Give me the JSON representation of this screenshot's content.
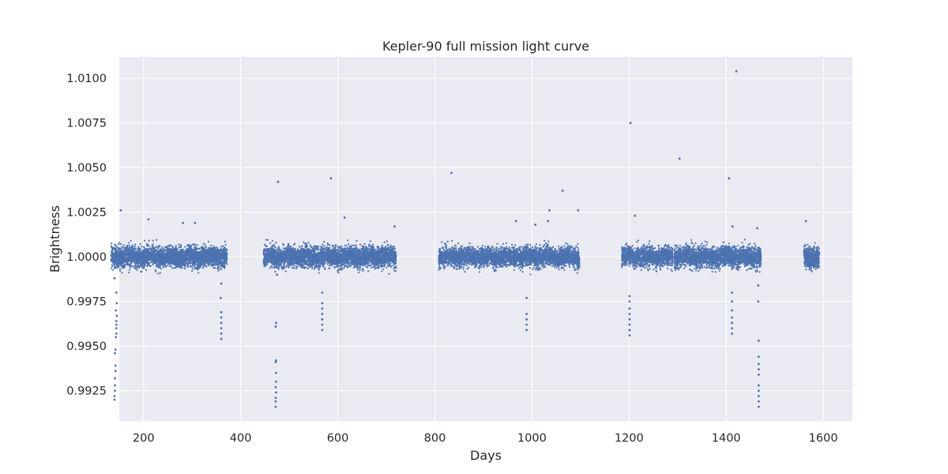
{
  "chart_data": {
    "type": "scatter",
    "title": "Kepler-90 full mission light curve",
    "xlabel": "Days",
    "ylabel": "Brightness",
    "xlim": [
      150,
      1660
    ],
    "ylim": [
      0.9908,
      1.0112
    ],
    "x_ticks": [
      200,
      400,
      600,
      800,
      1000,
      1200,
      1400,
      1600
    ],
    "x_tick_labels": [
      "200",
      "400",
      "600",
      "800",
      "1000",
      "1200",
      "1400",
      "1600"
    ],
    "y_ticks": [
      0.9925,
      0.995,
      0.9975,
      1.0,
      1.0025,
      1.005,
      1.0075,
      1.01
    ],
    "y_tick_labels": [
      "0.9925",
      "0.9950",
      "0.9975",
      "1.0000",
      "1.0025",
      "1.0050",
      "1.0075",
      "1.0100"
    ],
    "grid": true,
    "background": "#eaeaf2",
    "grid_color": "#ffffff",
    "marker_color": "#4c72b0",
    "series": [
      {
        "observing_segments": [
          {
            "start": 133,
            "end": 372,
            "mean": 1.0,
            "scatter": 0.00028
          },
          {
            "start": 447,
            "end": 720,
            "mean": 1.0,
            "scatter": 0.00028
          },
          {
            "start": 808,
            "end": 1098,
            "mean": 1.0,
            "scatter": 0.00026
          },
          {
            "start": 1185,
            "end": 1290,
            "mean": 1.0,
            "scatter": 0.00026
          },
          {
            "start": 1293,
            "end": 1472,
            "mean": 1.0,
            "scatter": 0.00027
          },
          {
            "start": 1560,
            "end": 1592,
            "mean": 1.0,
            "scatter": 0.0003
          }
        ],
        "transit_points": [
          {
            "x": 140,
            "y": 0.992
          },
          {
            "x": 140,
            "y": 0.9922
          },
          {
            "x": 141,
            "y": 0.9925
          },
          {
            "x": 141,
            "y": 0.9928
          },
          {
            "x": 141,
            "y": 0.9932
          },
          {
            "x": 142,
            "y": 0.9936
          },
          {
            "x": 142,
            "y": 0.9939
          },
          {
            "x": 141,
            "y": 0.9946
          },
          {
            "x": 142,
            "y": 0.9948
          },
          {
            "x": 143,
            "y": 0.9955
          },
          {
            "x": 144,
            "y": 0.9957
          },
          {
            "x": 144,
            "y": 0.996
          },
          {
            "x": 144,
            "y": 0.9962
          },
          {
            "x": 144,
            "y": 0.9964
          },
          {
            "x": 145,
            "y": 0.9967
          },
          {
            "x": 143,
            "y": 0.997
          },
          {
            "x": 145,
            "y": 0.9974
          },
          {
            "x": 144,
            "y": 0.998
          },
          {
            "x": 140,
            "y": 0.9988
          },
          {
            "x": 360,
            "y": 0.9954
          },
          {
            "x": 360,
            "y": 0.9957
          },
          {
            "x": 360,
            "y": 0.996
          },
          {
            "x": 360,
            "y": 0.9963
          },
          {
            "x": 360,
            "y": 0.9966
          },
          {
            "x": 360,
            "y": 0.9969
          },
          {
            "x": 359,
            "y": 0.9977
          },
          {
            "x": 360,
            "y": 0.9985
          },
          {
            "x": 472,
            "y": 0.9916
          },
          {
            "x": 472,
            "y": 0.9919
          },
          {
            "x": 472,
            "y": 0.9921
          },
          {
            "x": 473,
            "y": 0.9924
          },
          {
            "x": 472,
            "y": 0.9927
          },
          {
            "x": 473,
            "y": 0.993
          },
          {
            "x": 473,
            "y": 0.9935
          },
          {
            "x": 472,
            "y": 0.9941
          },
          {
            "x": 473,
            "y": 0.9942
          },
          {
            "x": 472,
            "y": 0.9961
          },
          {
            "x": 473,
            "y": 0.9963
          },
          {
            "x": 475,
            "y": 0.999
          },
          {
            "x": 568,
            "y": 0.9959
          },
          {
            "x": 568,
            "y": 0.9962
          },
          {
            "x": 568,
            "y": 0.9965
          },
          {
            "x": 568,
            "y": 0.9968
          },
          {
            "x": 568,
            "y": 0.9971
          },
          {
            "x": 568,
            "y": 0.9974
          },
          {
            "x": 568,
            "y": 0.998
          },
          {
            "x": 989,
            "y": 0.9959
          },
          {
            "x": 989,
            "y": 0.9962
          },
          {
            "x": 989,
            "y": 0.9965
          },
          {
            "x": 989,
            "y": 0.9968
          },
          {
            "x": 989,
            "y": 0.9977
          },
          {
            "x": 1201,
            "y": 0.9956
          },
          {
            "x": 1201,
            "y": 0.9959
          },
          {
            "x": 1201,
            "y": 0.9962
          },
          {
            "x": 1201,
            "y": 0.9965
          },
          {
            "x": 1201,
            "y": 0.9968
          },
          {
            "x": 1201,
            "y": 0.9971
          },
          {
            "x": 1201,
            "y": 0.9975
          },
          {
            "x": 1201,
            "y": 0.9978
          },
          {
            "x": 1412,
            "y": 0.9957
          },
          {
            "x": 1412,
            "y": 0.996
          },
          {
            "x": 1412,
            "y": 0.9963
          },
          {
            "x": 1412,
            "y": 0.9966
          },
          {
            "x": 1412,
            "y": 0.997
          },
          {
            "x": 1412,
            "y": 0.9975
          },
          {
            "x": 1412,
            "y": 0.998
          },
          {
            "x": 1467,
            "y": 0.9916
          },
          {
            "x": 1467,
            "y": 0.9919
          },
          {
            "x": 1467,
            "y": 0.9922
          },
          {
            "x": 1467,
            "y": 0.9925
          },
          {
            "x": 1467,
            "y": 0.9928
          },
          {
            "x": 1467,
            "y": 0.9934
          },
          {
            "x": 1467,
            "y": 0.9937
          },
          {
            "x": 1467,
            "y": 0.994
          },
          {
            "x": 1467,
            "y": 0.9944
          },
          {
            "x": 1467,
            "y": 0.9953
          },
          {
            "x": 1466,
            "y": 0.9975
          },
          {
            "x": 1466,
            "y": 0.9984
          }
        ],
        "outlier_points": [
          {
            "x": 153,
            "y": 1.0026
          },
          {
            "x": 210,
            "y": 1.0021
          },
          {
            "x": 281,
            "y": 1.0019
          },
          {
            "x": 306,
            "y": 1.0019
          },
          {
            "x": 477,
            "y": 1.0042
          },
          {
            "x": 586,
            "y": 1.0044
          },
          {
            "x": 614,
            "y": 1.0022
          },
          {
            "x": 717,
            "y": 1.0017
          },
          {
            "x": 834,
            "y": 1.0047
          },
          {
            "x": 967,
            "y": 1.002
          },
          {
            "x": 1007,
            "y": 1.0018
          },
          {
            "x": 1033,
            "y": 1.002
          },
          {
            "x": 1036,
            "y": 1.0026
          },
          {
            "x": 1063,
            "y": 1.0037
          },
          {
            "x": 1095,
            "y": 1.0026
          },
          {
            "x": 1203,
            "y": 1.0075
          },
          {
            "x": 1212,
            "y": 1.0023
          },
          {
            "x": 1304,
            "y": 1.0055
          },
          {
            "x": 1406,
            "y": 1.0044
          },
          {
            "x": 1421,
            "y": 1.0104
          },
          {
            "x": 1413,
            "y": 1.0017
          },
          {
            "x": 1464,
            "y": 1.0016
          },
          {
            "x": 1564,
            "y": 1.002
          },
          {
            "x": 1467,
            "y": 1.0005
          }
        ]
      }
    ]
  }
}
